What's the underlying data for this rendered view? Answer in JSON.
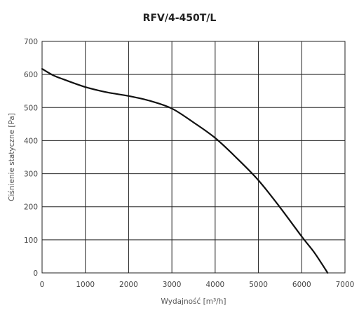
{
  "chart_data": {
    "type": "line",
    "title": "RFV/4-450T/L",
    "xlabel": "Wydajność [m³/h]",
    "ylabel": "Ciśnienie statyczne [Pa]",
    "xlim": [
      0,
      7000
    ],
    "ylim": [
      0,
      700
    ],
    "x_ticks": [
      0,
      1000,
      2000,
      3000,
      4000,
      5000,
      6000,
      7000
    ],
    "y_ticks": [
      0,
      100,
      200,
      300,
      400,
      500,
      600,
      700
    ],
    "x_tick_labels": [
      "0",
      "1000",
      "2000",
      "3000",
      "4000",
      "5000",
      "6000",
      "7000"
    ],
    "y_tick_labels": [
      "0",
      "100",
      "200",
      "300",
      "400",
      "500",
      "600",
      "700"
    ],
    "grid": true,
    "series": [
      {
        "x": [
          0,
          250,
          500,
          1000,
          1500,
          2000,
          2500,
          3000,
          3500,
          4000,
          4500,
          5000,
          5500,
          6000,
          6300,
          6600
        ],
        "y": [
          617,
          598,
          585,
          562,
          546,
          535,
          520,
          497,
          455,
          408,
          347,
          280,
          198,
          110,
          60,
          0
        ],
        "color": "#111111"
      }
    ]
  }
}
